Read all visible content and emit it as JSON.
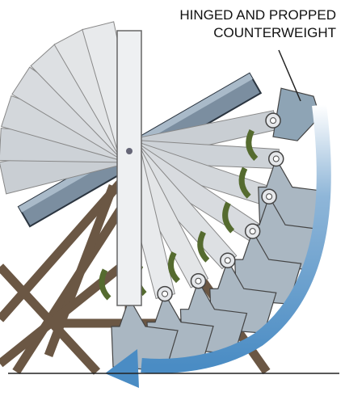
{
  "label": {
    "lines": [
      "HINGED AND PROPPED",
      "COUNTERWEIGHT"
    ]
  }
}
